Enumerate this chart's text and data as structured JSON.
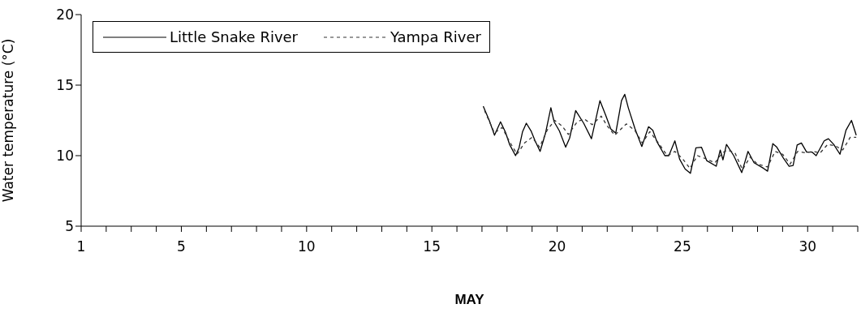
{
  "chart_data": {
    "type": "line",
    "xlabel": "MAY",
    "ylabel": "Water temperature (°C)",
    "xlim": [
      1,
      32
    ],
    "ylim": [
      5,
      20
    ],
    "yticks": [
      5,
      10,
      15,
      20
    ],
    "xticks": [
      1,
      {
        "value": 2,
        "label": null
      },
      {
        "value": 3,
        "label": null
      },
      {
        "value": 4,
        "label": null
      },
      5,
      {
        "value": 6,
        "label": null
      },
      {
        "value": 7,
        "label": null
      },
      {
        "value": 8,
        "label": null
      },
      {
        "value": 9,
        "label": null
      },
      10,
      {
        "value": 11,
        "label": null
      },
      {
        "value": 12,
        "label": null
      },
      {
        "value": 13,
        "label": null
      },
      {
        "value": 14,
        "label": null
      },
      15,
      {
        "value": 16,
        "label": null
      },
      {
        "value": 17,
        "label": null
      },
      {
        "value": 18,
        "label": null
      },
      {
        "value": 19,
        "label": null
      },
      20,
      {
        "value": 21,
        "label": null
      },
      {
        "value": 22,
        "label": null
      },
      {
        "value": 23,
        "label": null
      },
      {
        "value": 24,
        "label": null
      },
      25,
      {
        "value": 26,
        "label": null
      },
      {
        "value": 27,
        "label": null
      },
      {
        "value": 28,
        "label": null
      },
      {
        "value": 29,
        "label": null
      },
      30,
      {
        "value": 31,
        "label": null
      },
      {
        "value": 32,
        "label": null
      }
    ],
    "legend": "top left",
    "marker": "none",
    "series": [
      {
        "name": "Little Snake River",
        "color": "#000000",
        "line_style": "solid",
        "x": [
          17.05,
          17.29,
          17.5,
          17.74,
          17.94,
          18.1,
          18.34,
          18.48,
          18.62,
          18.77,
          18.96,
          19.12,
          19.32,
          19.53,
          19.75,
          19.88,
          20.09,
          20.34,
          20.5,
          20.74,
          21.06,
          21.37,
          21.71,
          21.93,
          22.14,
          22.34,
          22.57,
          22.7,
          22.84,
          23.11,
          23.38,
          23.65,
          23.82,
          23.98,
          24.3,
          24.46,
          24.7,
          24.89,
          25.11,
          25.32,
          25.54,
          25.76,
          25.97,
          26.35,
          26.51,
          26.62,
          26.76,
          27.05,
          27.37,
          27.62,
          27.86,
          28.24,
          28.4,
          28.61,
          28.77,
          29.04,
          29.26,
          29.42,
          29.58,
          29.75,
          29.96,
          30.18,
          30.34,
          30.66,
          30.83,
          31.04,
          31.29,
          31.53,
          31.75,
          31.94
        ],
        "values": [
          13.5,
          12.5,
          11.45,
          12.4,
          11.65,
          10.8,
          10.0,
          10.55,
          11.7,
          12.3,
          11.75,
          11.05,
          10.3,
          11.55,
          13.4,
          12.4,
          11.75,
          10.6,
          11.25,
          13.2,
          12.3,
          11.2,
          13.9,
          12.9,
          11.9,
          11.6,
          13.9,
          14.35,
          13.4,
          11.9,
          10.65,
          12.05,
          11.8,
          11.0,
          10.0,
          10.0,
          11.05,
          9.75,
          9.05,
          8.75,
          10.55,
          10.6,
          9.65,
          9.25,
          10.4,
          9.7,
          10.8,
          10.0,
          8.8,
          10.3,
          9.5,
          9.1,
          8.9,
          10.85,
          10.6,
          9.8,
          9.25,
          9.3,
          10.75,
          10.9,
          10.25,
          10.25,
          10.0,
          11.05,
          11.2,
          10.8,
          10.1,
          11.8,
          12.5,
          11.45
        ]
      },
      {
        "name": "Yampa River",
        "color": "#333333",
        "line_style": "dashed",
        "x": [
          17.1,
          17.5,
          17.8,
          18.1,
          18.4,
          18.7,
          19.0,
          19.3,
          19.6,
          19.9,
          20.2,
          20.45,
          20.8,
          21.08,
          21.4,
          21.76,
          22.0,
          22.3,
          22.76,
          23.1,
          23.4,
          23.7,
          24.0,
          24.4,
          24.7,
          25.0,
          25.3,
          25.6,
          25.9,
          26.3,
          26.6,
          26.8,
          27.1,
          27.4,
          27.7,
          28.0,
          28.4,
          28.7,
          29.0,
          29.3,
          29.6,
          29.9,
          30.2,
          30.5,
          30.8,
          31.1,
          31.4,
          31.7,
          31.94
        ],
        "values": [
          13.2,
          11.6,
          12.0,
          11.0,
          10.1,
          10.9,
          11.3,
          10.6,
          11.8,
          12.5,
          12.1,
          11.5,
          12.4,
          12.6,
          12.2,
          12.8,
          12.1,
          11.45,
          12.25,
          11.8,
          10.9,
          11.7,
          11.0,
          10.0,
          10.3,
          9.8,
          9.1,
          10.0,
          9.8,
          9.5,
          10.2,
          10.4,
          10.2,
          9.0,
          9.9,
          9.4,
          9.2,
          10.3,
          10.1,
          9.4,
          10.3,
          10.2,
          10.3,
          10.2,
          10.8,
          10.7,
          10.4,
          11.3,
          11.3
        ]
      }
    ]
  }
}
